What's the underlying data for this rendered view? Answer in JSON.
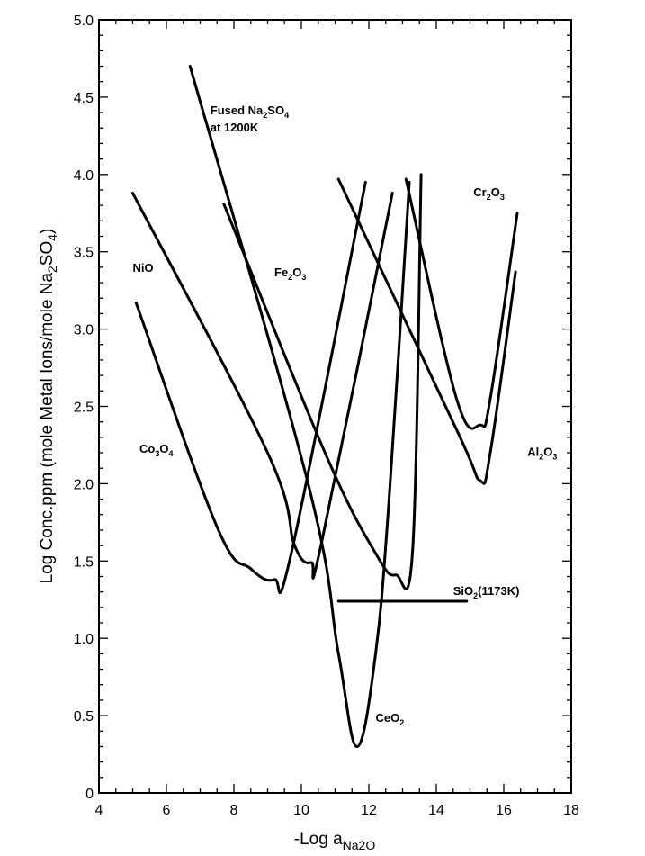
{
  "chart_data": {
    "type": "line",
    "title": "",
    "xlabel": "-Log a",
    "xlabel_sub": "Na2O",
    "ylabel": "Log Conc.ppm (mole Metal Ions/mole Na",
    "ylabel_sub": "2",
    "ylabel_mid": "SO",
    "ylabel_sub2": "4",
    "ylabel_end": ")",
    "xlim": [
      4,
      18
    ],
    "ylim": [
      0,
      5
    ],
    "x_ticks": [
      4,
      6,
      8,
      10,
      12,
      14,
      16,
      18
    ],
    "y_ticks": [
      "0",
      "0.5",
      "1.0",
      "1.5",
      "2.0",
      "2.5",
      "3.0",
      "3.5",
      "4.0",
      "4.5",
      "5.0"
    ],
    "grid": false,
    "series": [
      {
        "name": "Co3O4",
        "label_parts": [
          [
            "Co",
            ""
          ],
          [
            "3",
            "sub"
          ],
          [
            "O",
            ""
          ],
          [
            "4",
            "sub"
          ]
        ],
        "label_at": [
          5.2,
          2.2
        ],
        "points": [
          [
            5.1,
            3.17
          ],
          [
            7.5,
            1.72
          ],
          [
            8.5,
            1.45
          ],
          [
            9.2,
            1.38
          ],
          [
            9.7,
            1.55
          ],
          [
            11.9,
            3.95
          ]
        ]
      },
      {
        "name": "NiO",
        "label_parts": [
          [
            "NiO",
            ""
          ]
        ],
        "label_at": [
          5.0,
          3.37
        ],
        "points": [
          [
            5.0,
            3.88
          ],
          [
            9.0,
            2.2
          ],
          [
            9.8,
            1.6
          ],
          [
            10.3,
            1.49
          ],
          [
            10.6,
            1.62
          ],
          [
            12.7,
            3.88
          ]
        ]
      },
      {
        "name": "Fe2O3",
        "label_parts": [
          [
            "Fe",
            ""
          ],
          [
            "2",
            "sub"
          ],
          [
            "O",
            ""
          ],
          [
            "3",
            "sub"
          ]
        ],
        "label_at": [
          9.2,
          3.34
        ],
        "points": [
          [
            7.7,
            3.81
          ],
          [
            10.7,
            2.2
          ],
          [
            12.2,
            1.55
          ],
          [
            12.8,
            1.41
          ],
          [
            13.3,
            1.58
          ],
          [
            13.55,
            4.0
          ]
        ]
      },
      {
        "name": "CeO2",
        "label_parts": [
          [
            "CeO",
            ""
          ],
          [
            "2",
            "sub"
          ]
        ],
        "label_at": [
          12.2,
          0.46
        ],
        "points": [
          [
            6.7,
            4.7
          ],
          [
            10.2,
            2.0
          ],
          [
            11.1,
            0.9
          ],
          [
            11.65,
            0.3
          ],
          [
            12.2,
            0.9
          ],
          [
            12.6,
            1.9
          ],
          [
            13.2,
            3.95
          ]
        ]
      },
      {
        "name": "Al2O3",
        "label_parts": [
          [
            "Al",
            ""
          ],
          [
            "2",
            "sub"
          ],
          [
            "O",
            ""
          ],
          [
            "3",
            "sub"
          ]
        ],
        "label_at": [
          16.7,
          2.18
        ],
        "points": [
          [
            11.1,
            3.97
          ],
          [
            14.6,
            2.35
          ],
          [
            15.3,
            2.02
          ],
          [
            15.6,
            2.2
          ],
          [
            16.35,
            3.37
          ]
        ]
      },
      {
        "name": "Cr2O3",
        "label_parts": [
          [
            "Cr",
            ""
          ],
          [
            "2",
            "sub"
          ],
          [
            "O",
            ""
          ],
          [
            "3",
            "sub"
          ]
        ],
        "label_at": [
          15.1,
          3.86
        ],
        "points": [
          [
            13.1,
            3.97
          ],
          [
            14.6,
            2.55
          ],
          [
            15.3,
            2.38
          ],
          [
            15.6,
            2.55
          ],
          [
            16.4,
            3.75
          ]
        ]
      },
      {
        "name": "SiO2(1173K)",
        "label_parts": [
          [
            "SiO",
            ""
          ],
          [
            "2",
            "sub"
          ],
          [
            "(1173K)",
            ""
          ]
        ],
        "label_at": [
          14.5,
          1.28
        ],
        "points": [
          [
            11.1,
            1.24
          ],
          [
            14.9,
            1.24
          ]
        ]
      }
    ],
    "annotation": {
      "parts": [
        [
          "Fused Na",
          ""
        ],
        [
          "2",
          "sub"
        ],
        [
          "SO",
          ""
        ],
        [
          "4",
          "sub"
        ]
      ],
      "line2": "at 1200K",
      "at": [
        7.3,
        4.39
      ]
    }
  }
}
